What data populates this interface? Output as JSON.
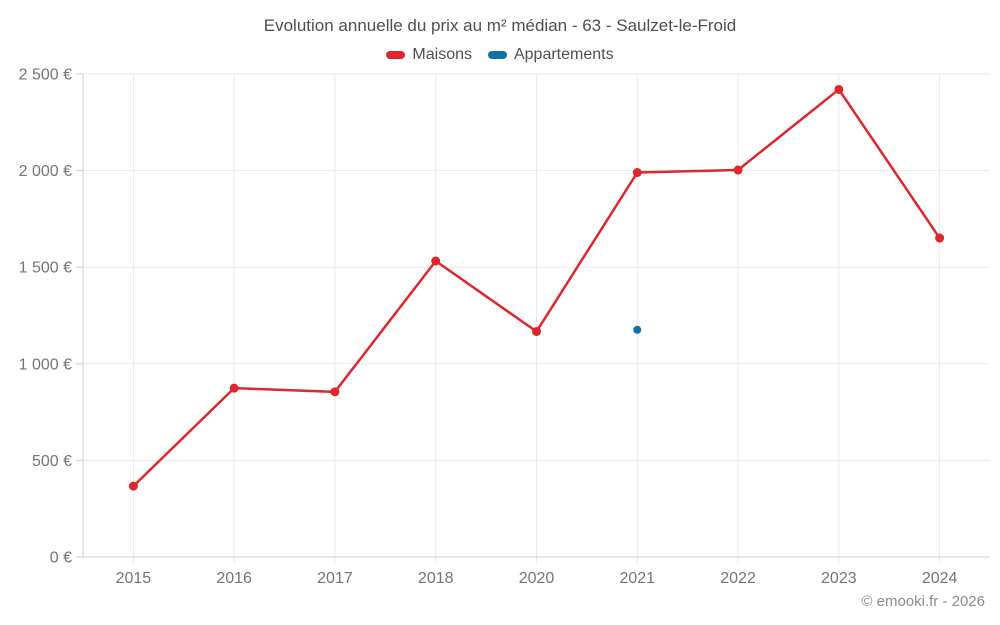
{
  "chart_data": {
    "type": "line",
    "title": "Evolution annuelle du prix au m² médian - 63 - Saulzet-le-Froid",
    "categories": [
      "2015",
      "2016",
      "2017",
      "2018",
      "2020",
      "2021",
      "2022",
      "2023",
      "2024"
    ],
    "series": [
      {
        "name": "Maisons",
        "color": "#e0262d",
        "values": [
          367,
          874,
          855,
          1532,
          1167,
          1990,
          2003,
          2420,
          1651
        ]
      },
      {
        "name": "Appartements",
        "color": "#1272a8",
        "values": [
          null,
          null,
          null,
          null,
          null,
          1176,
          null,
          null,
          null
        ]
      }
    ],
    "ylim": [
      0,
      2500
    ],
    "yticks": [
      {
        "value": 0,
        "label": "0 €"
      },
      {
        "value": 500,
        "label": "500 €"
      },
      {
        "value": 1000,
        "label": "1 000 €"
      },
      {
        "value": 1500,
        "label": "1 500 €"
      },
      {
        "value": 2000,
        "label": "2 000 €"
      },
      {
        "value": 2500,
        "label": "2 500 €"
      }
    ],
    "grid": true,
    "legend_position": "top"
  },
  "legend": {
    "items": [
      {
        "label": "Maisons",
        "color": "#e0262d"
      },
      {
        "label": "Appartements",
        "color": "#1272a8"
      }
    ]
  },
  "footer": "© emooki.fr - 2026",
  "colors": {
    "grid": "#eaeaea",
    "axis": "#cfcfcf",
    "tick_label": "#757575",
    "title": "#4f4f4f",
    "footer": "#8c8c8c"
  }
}
